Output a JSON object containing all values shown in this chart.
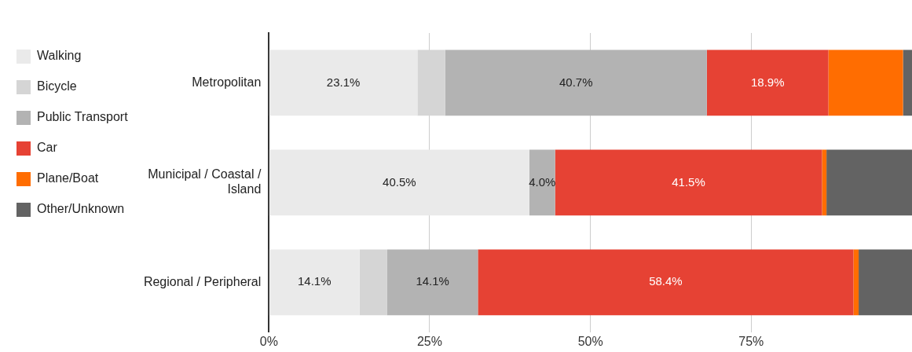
{
  "chart_data": {
    "type": "bar",
    "orientation": "horizontal",
    "stacked": true,
    "categories": [
      "Metropolitan",
      "Municipal / Coastal / Island",
      "Regional / Peripheral"
    ],
    "series": [
      {
        "name": "Walking",
        "color": "#eaeaea",
        "values": [
          23.1,
          40.5,
          14.1
        ],
        "value_labels": [
          "23.1%",
          "40.5%",
          "14.1%"
        ]
      },
      {
        "name": "Bicycle",
        "color": "#d5d5d5",
        "values": [
          4.3,
          0,
          4.3
        ],
        "value_labels": [
          null,
          null,
          null
        ]
      },
      {
        "name": "Public Transport",
        "color": "#b3b3b3",
        "values": [
          40.7,
          4.0,
          14.1
        ],
        "value_labels": [
          "40.7%",
          "4.0%",
          "14.1%"
        ]
      },
      {
        "name": "Car",
        "color": "#e64234",
        "values": [
          18.9,
          41.5,
          58.4
        ],
        "value_labels": [
          "18.9%",
          "41.5%",
          "58.4%"
        ]
      },
      {
        "name": "Plane/Boat",
        "color": "#ff6d01",
        "values": [
          11.6,
          0.7,
          0.8
        ],
        "value_labels": [
          null,
          null,
          null
        ]
      },
      {
        "name": "Other/Unknown",
        "color": "#636363",
        "values": [
          1.4,
          13.3,
          8.3
        ],
        "value_labels": [
          null,
          null,
          null
        ]
      }
    ],
    "xlim": [
      0,
      100
    ],
    "xticks": [
      {
        "value": 0,
        "label": "0%"
      },
      {
        "value": 25,
        "label": "25%"
      },
      {
        "value": 50,
        "label": "50%"
      },
      {
        "value": 75,
        "label": "75%"
      }
    ],
    "grid": "x",
    "legend": "top left"
  }
}
